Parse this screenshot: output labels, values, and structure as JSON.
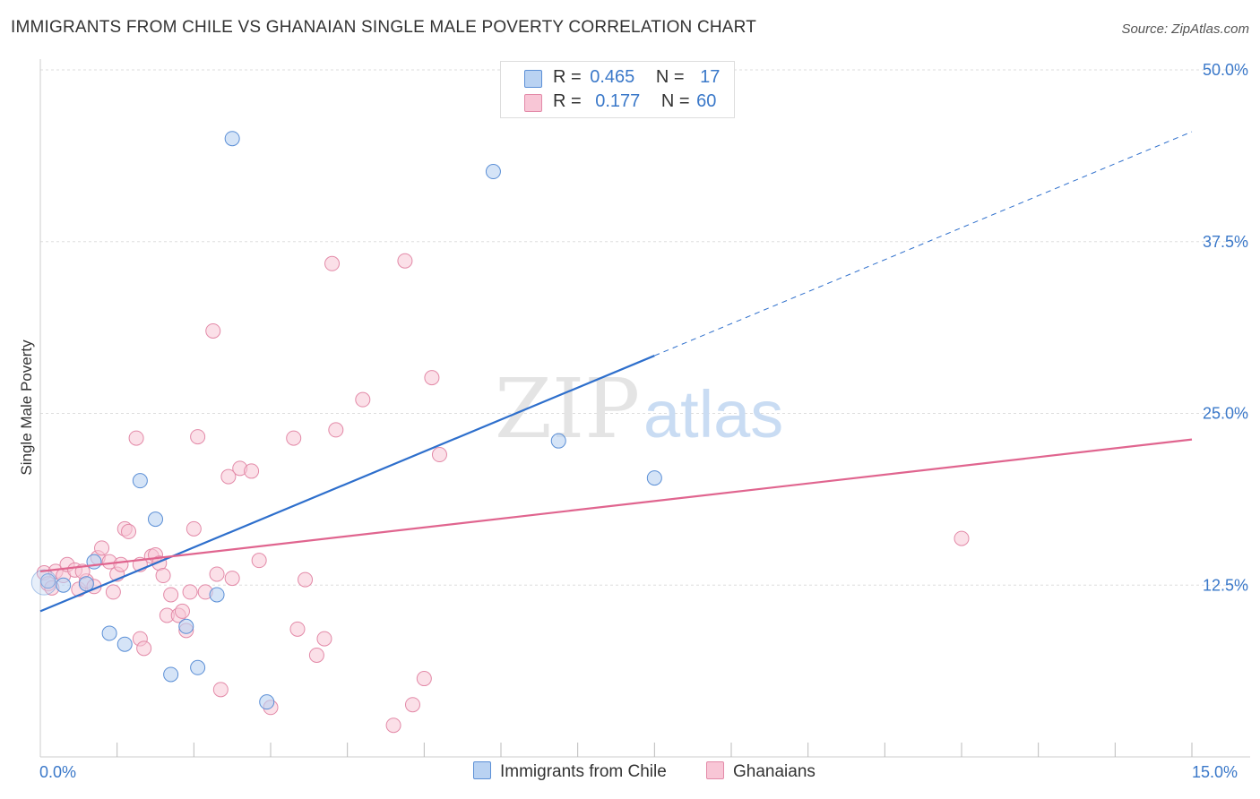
{
  "title": "IMMIGRANTS FROM CHILE VS GHANAIAN SINGLE MALE POVERTY CORRELATION CHART",
  "source": "Source: ZipAtlas.com",
  "watermark": {
    "zip": "ZIP",
    "atlas": "atlas"
  },
  "colors": {
    "chile_fill": "#b9d2f2",
    "chile_stroke": "#5b8fd6",
    "chile_line": "#2e6fcc",
    "ghana_fill": "#f8c6d6",
    "ghana_stroke": "#e38aa8",
    "ghana_line": "#e0658f",
    "axis_label": "#3a78c9",
    "grid": "#dddddd"
  },
  "legend": [
    {
      "r_label": "R =",
      "r_value": "0.465",
      "n_label": "N =",
      "n_value": "17"
    },
    {
      "r_label": "R =",
      "r_value": "0.177",
      "n_label": "N =",
      "n_value": "60"
    }
  ],
  "chart_data": {
    "type": "scatter",
    "title": "IMMIGRANTS FROM CHILE VS GHANAIAN SINGLE MALE POVERTY CORRELATION CHART",
    "xlabel": "",
    "ylabel": "Single Male Poverty",
    "xlim": [
      0,
      15
    ],
    "ylim": [
      0,
      50
    ],
    "x_tick_labels": [
      "0.0%",
      "15.0%"
    ],
    "y_ticks": [
      12.5,
      25.0,
      37.5,
      50.0
    ],
    "y_tick_labels": [
      "12.5%",
      "25.0%",
      "37.5%",
      "50.0%"
    ],
    "grid": true,
    "series": [
      {
        "name": "Immigrants from Chile",
        "points": [
          [
            0.1,
            12.8
          ],
          [
            0.3,
            12.5
          ],
          [
            0.6,
            12.6
          ],
          [
            0.7,
            14.2
          ],
          [
            0.9,
            9.0
          ],
          [
            1.1,
            8.2
          ],
          [
            1.3,
            20.1
          ],
          [
            1.5,
            17.3
          ],
          [
            1.7,
            6.0
          ],
          [
            1.9,
            9.5
          ],
          [
            2.05,
            6.5
          ],
          [
            2.3,
            11.8
          ],
          [
            2.5,
            45.0
          ],
          [
            2.95,
            4.0
          ],
          [
            5.9,
            42.6
          ],
          [
            6.75,
            23.0
          ],
          [
            8.0,
            20.3
          ]
        ],
        "trend": {
          "x0": 0,
          "y0": 10.6,
          "x1": 8.0,
          "y1": 29.2,
          "dashed_to_x": 15.0,
          "dashed_to_y": 45.5
        }
      },
      {
        "name": "Ghanaians",
        "points": [
          [
            0.05,
            13.4
          ],
          [
            0.1,
            12.6
          ],
          [
            0.2,
            13.5
          ],
          [
            0.3,
            13.2
          ],
          [
            0.35,
            14.0
          ],
          [
            0.45,
            13.6
          ],
          [
            0.5,
            12.2
          ],
          [
            0.6,
            12.8
          ],
          [
            0.7,
            12.4
          ],
          [
            0.75,
            14.5
          ],
          [
            0.8,
            15.2
          ],
          [
            0.9,
            14.2
          ],
          [
            0.95,
            12.0
          ],
          [
            1.0,
            13.3
          ],
          [
            1.05,
            14.0
          ],
          [
            1.1,
            16.6
          ],
          [
            1.15,
            16.4
          ],
          [
            1.25,
            23.2
          ],
          [
            1.3,
            8.6
          ],
          [
            1.35,
            7.9
          ],
          [
            1.45,
            14.6
          ],
          [
            1.5,
            14.7
          ],
          [
            1.55,
            14.1
          ],
          [
            1.6,
            13.2
          ],
          [
            1.65,
            10.3
          ],
          [
            1.7,
            11.8
          ],
          [
            1.8,
            10.3
          ],
          [
            1.85,
            10.6
          ],
          [
            1.9,
            9.2
          ],
          [
            1.95,
            12.0
          ],
          [
            2.0,
            16.6
          ],
          [
            2.05,
            23.3
          ],
          [
            2.15,
            12.0
          ],
          [
            2.25,
            31.0
          ],
          [
            2.3,
            13.3
          ],
          [
            2.35,
            4.9
          ],
          [
            2.45,
            20.4
          ],
          [
            2.5,
            13.0
          ],
          [
            2.6,
            21.0
          ],
          [
            2.75,
            20.8
          ],
          [
            2.85,
            14.3
          ],
          [
            3.0,
            3.6
          ],
          [
            3.3,
            23.2
          ],
          [
            3.35,
            9.3
          ],
          [
            3.45,
            12.9
          ],
          [
            3.6,
            7.4
          ],
          [
            3.7,
            8.6
          ],
          [
            3.8,
            35.9
          ],
          [
            3.85,
            23.8
          ],
          [
            4.2,
            26.0
          ],
          [
            4.6,
            2.3
          ],
          [
            4.75,
            36.1
          ],
          [
            4.85,
            3.8
          ],
          [
            5.0,
            5.7
          ],
          [
            5.1,
            27.6
          ],
          [
            5.2,
            22.0
          ],
          [
            12.0,
            15.9
          ],
          [
            0.15,
            12.3
          ],
          [
            1.3,
            14.0
          ],
          [
            0.55,
            13.5
          ]
        ],
        "trend": {
          "x0": 0,
          "y0": 13.5,
          "x1": 15.0,
          "y1": 23.1
        }
      }
    ]
  }
}
